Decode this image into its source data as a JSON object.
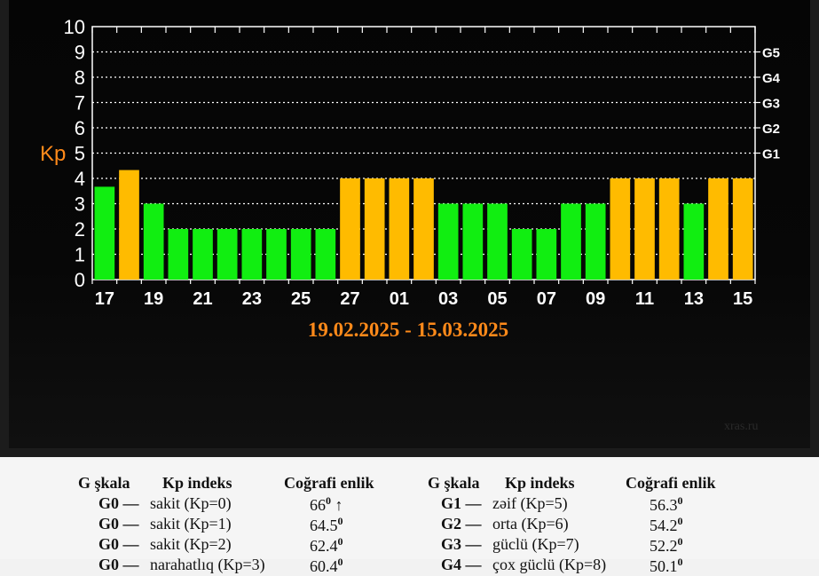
{
  "chart_data": {
    "type": "bar",
    "title": "19.02.2025 - 15.03.2025",
    "ylabel": "Kp",
    "ylim": [
      0,
      10
    ],
    "yticks": [
      "0",
      "1",
      "2",
      "3",
      "4",
      "5",
      "6",
      "7",
      "8",
      "9",
      "10"
    ],
    "g_levels": [
      {
        "label": "G1",
        "kp": 5
      },
      {
        "label": "G2",
        "kp": 6
      },
      {
        "label": "G3",
        "kp": 7
      },
      {
        "label": "G4",
        "kp": 8
      },
      {
        "label": "G5",
        "kp": 9
      }
    ],
    "xtick_labels": [
      "17",
      "19",
      "21",
      "23",
      "25",
      "27",
      "01",
      "03",
      "05",
      "07",
      "09",
      "11",
      "13",
      "15"
    ],
    "values": [
      3.67,
      4.33,
      3,
      2,
      2,
      2,
      2,
      2,
      2,
      2,
      4,
      4,
      4,
      4,
      3,
      3,
      3,
      2,
      2,
      3,
      3,
      4,
      4,
      4,
      3,
      4,
      4
    ],
    "grid": "dotted",
    "colors": {
      "quiet": "#11ee11",
      "active": "#ffbb00"
    }
  },
  "watermark": "xras.ru",
  "table": {
    "headers": [
      "G şkala",
      "Kp indeks",
      "Coğrafi enlik",
      "G şkala",
      "Kp indeks",
      "Coğrafi enlik"
    ],
    "left_rows": [
      {
        "g": "G0 —",
        "kp": "sakit (Kp=0)",
        "lat": "66",
        "extra": " ↑"
      },
      {
        "g": "G0 —",
        "kp": "sakit (Kp=1)",
        "lat": "64.5",
        "extra": ""
      },
      {
        "g": "G0 —",
        "kp": "sakit (Kp=2)",
        "lat": "62.4",
        "extra": ""
      },
      {
        "g": "G0 —",
        "kp": "narahatlıq (Kp=3)",
        "lat": "60.4",
        "extra": ""
      }
    ],
    "right_rows": [
      {
        "g": "G1 —",
        "kp": "zəif (Kp=5)",
        "lat": "56.3"
      },
      {
        "g": "G2 —",
        "kp": "orta (Kp=6)",
        "lat": "54.2"
      },
      {
        "g": "G3 —",
        "kp": "güclü (Kp=7)",
        "lat": "52.2"
      },
      {
        "g": "G4 —",
        "kp": "çox güclü (Kp=8)",
        "lat": "50.1"
      }
    ],
    "degree": "0"
  }
}
